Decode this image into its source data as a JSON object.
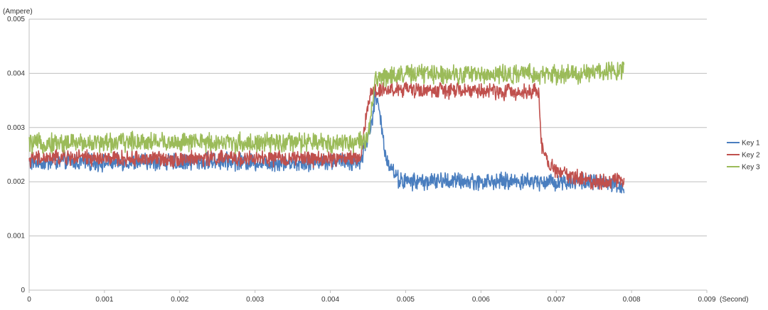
{
  "chart_data": {
    "type": "line",
    "title": "",
    "ylabel": "(Ampere)",
    "xlabel": "(Second)",
    "xlim": [
      0,
      0.009
    ],
    "ylim": [
      0,
      0.005
    ],
    "x_ticks": [
      "0",
      "0.001",
      "0.002",
      "0.003",
      "0.004",
      "0.005",
      "0.006",
      "0.007",
      "0.008",
      "0.009"
    ],
    "y_ticks": [
      "0",
      "0.001",
      "0.002",
      "0.003",
      "0.004",
      "0.005"
    ],
    "grid": "horizontal",
    "legend_position": "right",
    "series": [
      {
        "name": "Key 1",
        "color": "#4a7ebf",
        "x": [
          0,
          0.0005,
          0.001,
          0.0015,
          0.002,
          0.0025,
          0.003,
          0.0035,
          0.004,
          0.0044,
          0.00455,
          0.0046,
          0.00465,
          0.0047,
          0.00475,
          0.0048,
          0.0049,
          0.005,
          0.0055,
          0.006,
          0.0065,
          0.007,
          0.0075,
          0.0079
        ],
        "y": [
          0.00235,
          0.00237,
          0.00235,
          0.00237,
          0.00236,
          0.00238,
          0.00236,
          0.00235,
          0.00238,
          0.00236,
          0.0031,
          0.0036,
          0.0033,
          0.0028,
          0.0024,
          0.0023,
          0.00205,
          0.002,
          0.00202,
          0.002,
          0.00201,
          0.002,
          0.002,
          0.0019
        ]
      },
      {
        "name": "Key 2",
        "color": "#c0504d",
        "x": [
          0,
          0.0005,
          0.001,
          0.0015,
          0.002,
          0.0025,
          0.003,
          0.0035,
          0.004,
          0.0044,
          0.00452,
          0.0046,
          0.0047,
          0.005,
          0.0055,
          0.006,
          0.0065,
          0.0067,
          0.00677,
          0.0068,
          0.0069,
          0.0072,
          0.0075,
          0.0079
        ],
        "y": [
          0.00242,
          0.00245,
          0.00242,
          0.00243,
          0.00242,
          0.00244,
          0.00242,
          0.00243,
          0.00242,
          0.00245,
          0.0036,
          0.0037,
          0.0037,
          0.0037,
          0.00368,
          0.00368,
          0.00365,
          0.0037,
          0.0036,
          0.0027,
          0.0023,
          0.0021,
          0.002,
          0.00205
        ]
      },
      {
        "name": "Key 3",
        "color": "#9bbb59",
        "x": [
          0,
          0.0005,
          0.001,
          0.0015,
          0.002,
          0.0025,
          0.003,
          0.0035,
          0.004,
          0.0045,
          0.0046,
          0.0047,
          0.005,
          0.0055,
          0.006,
          0.0065,
          0.007,
          0.0075,
          0.0079
        ],
        "y": [
          0.0027,
          0.00272,
          0.00272,
          0.00275,
          0.00272,
          0.00273,
          0.00271,
          0.00272,
          0.00272,
          0.00275,
          0.0039,
          0.00395,
          0.00398,
          0.004,
          0.00398,
          0.00398,
          0.00397,
          0.004,
          0.0041
        ]
      }
    ]
  }
}
